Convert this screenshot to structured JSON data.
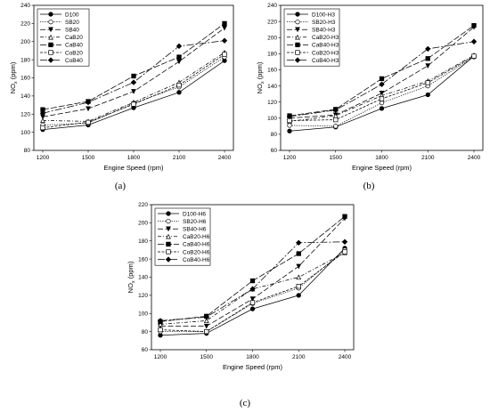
{
  "chart_data": [
    {
      "type": "line",
      "caption": "(a)",
      "xlabel": "Engine Speed (rpm)",
      "ylabel_main": "NO",
      "ylabel_sub": "x",
      "ylabel_tail": " (ppm)",
      "ylim": [
        80,
        240
      ],
      "yticks": [
        "80",
        "100",
        "120",
        "140",
        "160",
        "180",
        "200",
        "220",
        "240"
      ],
      "categories": [
        "1200",
        "1500",
        "1800",
        "2100",
        "2400"
      ],
      "legend_position": "top-left",
      "series": [
        {
          "name": "D100",
          "values": [
            103,
            108,
            127,
            144,
            179
          ]
        },
        {
          "name": "SB20",
          "values": [
            108,
            110,
            132,
            150,
            183
          ]
        },
        {
          "name": "SB40",
          "values": [
            117,
            126,
            145,
            178,
            215
          ]
        },
        {
          "name": "CaB20",
          "values": [
            113,
            112,
            133,
            155,
            188
          ]
        },
        {
          "name": "CaB40",
          "values": [
            125,
            134,
            162,
            183,
            220
          ]
        },
        {
          "name": "CoB20",
          "values": [
            105,
            111,
            131,
            152,
            186
          ]
        },
        {
          "name": "CoB40",
          "values": [
            121,
            133,
            155,
            195,
            201
          ]
        }
      ]
    },
    {
      "type": "line",
      "caption": "(b)",
      "xlabel": "Engine Speed (rpm)",
      "ylabel_main": "NO",
      "ylabel_sub": "x",
      "ylabel_tail": " (ppm)",
      "ylim": [
        60,
        240
      ],
      "yticks": [
        "60",
        "80",
        "100",
        "120",
        "140",
        "160",
        "180",
        "200",
        "220",
        "240"
      ],
      "categories": [
        "1200",
        "1500",
        "1800",
        "2100",
        "2400"
      ],
      "legend_position": "top-left",
      "series": [
        {
          "name": "D100-H3",
          "values": [
            84,
            89,
            112,
            129,
            177
          ]
        },
        {
          "name": "SB20-H3",
          "values": [
            91,
            90,
            119,
            140,
            176
          ]
        },
        {
          "name": "SB40-H3",
          "values": [
            100,
            104,
            131,
            165,
            213
          ]
        },
        {
          "name": "CaB20-H3",
          "values": [
            96,
            103,
            128,
            146,
            178
          ]
        },
        {
          "name": "CaB40-H3",
          "values": [
            103,
            111,
            149,
            174,
            215
          ]
        },
        {
          "name": "CoB20-H3",
          "values": [
            97,
            98,
            124,
            144,
            177
          ]
        },
        {
          "name": "CoB40-H3",
          "values": [
            102,
            110,
            142,
            186,
            195
          ]
        }
      ]
    },
    {
      "type": "line",
      "caption": "(c)",
      "xlabel": "Engine Speed (rpm)",
      "ylabel_main": "NO",
      "ylabel_sub": "x",
      "ylabel_tail": " (ppm)",
      "ylim": [
        60,
        220
      ],
      "yticks": [
        "60",
        "80",
        "100",
        "120",
        "140",
        "160",
        "180",
        "200",
        "220"
      ],
      "categories": [
        "1200",
        "1500",
        "1800",
        "2100",
        "2400"
      ],
      "legend_position": "top-left",
      "series": [
        {
          "name": "D100-H6",
          "values": [
            76,
            78,
            105,
            120,
            172
          ]
        },
        {
          "name": "SB20-H6",
          "values": [
            80,
            80,
            111,
            128,
            170
          ]
        },
        {
          "name": "SB40-H6",
          "values": [
            86,
            86,
            116,
            152,
            205
          ]
        },
        {
          "name": "CaB20-H6",
          "values": [
            88,
            92,
            127,
            140,
            167
          ]
        },
        {
          "name": "CaB40-H6",
          "values": [
            91,
            97,
            136,
            166,
            207
          ]
        },
        {
          "name": "CoB20-H6",
          "values": [
            82,
            80,
            112,
            130,
            168
          ]
        },
        {
          "name": "CoB40-H6",
          "values": [
            92,
            96,
            127,
            178,
            179
          ]
        }
      ]
    }
  ]
}
